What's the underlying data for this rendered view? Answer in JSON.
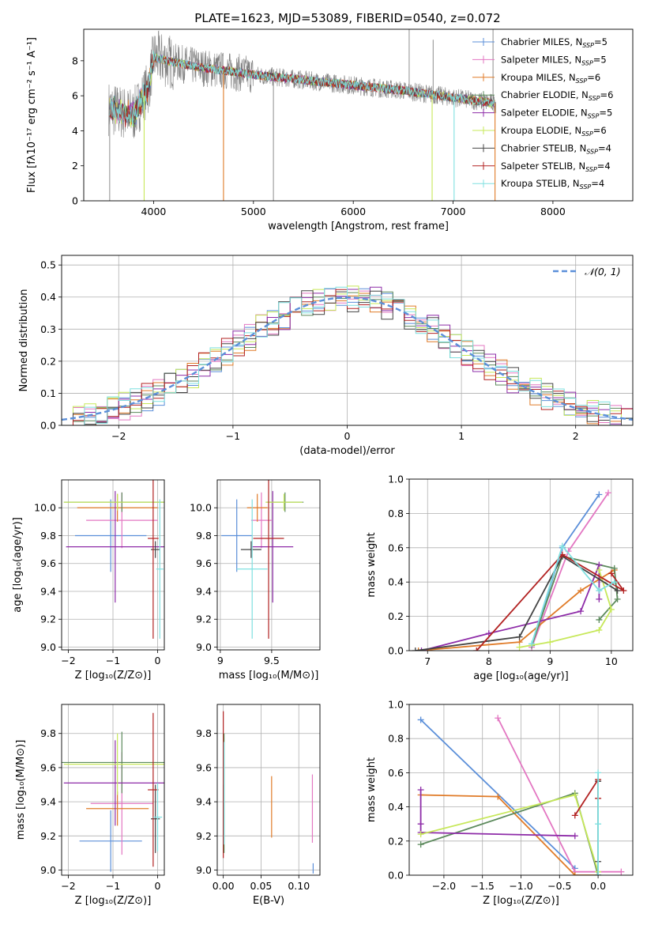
{
  "figure_title": "PLATE=1623, MJD=53089, FIBERID=0540, z=0.072",
  "colors": {
    "chabrier_miles": "#5b8fd9",
    "salpeter_miles": "#e377c2",
    "kroupa_miles": "#e07b28",
    "chabrier_elodie": "#5c8a5c",
    "salpeter_elodie": "#8e2ca8",
    "kroupa_elodie": "#c7e85a",
    "chabrier_stelib": "#444444",
    "salpeter_stelib": "#b22222",
    "kroupa_stelib": "#7fe0e0",
    "data": "#808080",
    "normal": "#5b8fd9"
  },
  "chart_data": [
    {
      "id": "spectrum",
      "type": "line",
      "title": "PLATE=1623, MJD=53089, FIBERID=0540, z=0.072",
      "xlabel": "wavelength [Angstrom, rest frame]",
      "ylabel": "Flux [fλ10⁻¹⁷ erg cm⁻² s⁻¹ A⁻¹]",
      "xlim": [
        3300,
        8800
      ],
      "ylim": [
        0,
        9.8
      ],
      "xticks": [
        4000,
        5000,
        6000,
        7000,
        8000
      ],
      "yticks": [
        0,
        2,
        4,
        6,
        8
      ],
      "legend_position": "top-right",
      "legend": [
        {
          "key": "chabrier_miles",
          "label": "Chabrier MILES, N",
          "sub": "SSP",
          "suffix": "=5"
        },
        {
          "key": "salpeter_miles",
          "label": "Salpeter MILES, N",
          "sub": "SSP",
          "suffix": "=5"
        },
        {
          "key": "kroupa_miles",
          "label": "Kroupa MILES, N",
          "sub": "SSP",
          "suffix": "=6"
        },
        {
          "key": "chabrier_elodie",
          "label": "Chabrier ELODIE, N",
          "sub": "SSP",
          "suffix": "=6"
        },
        {
          "key": "salpeter_elodie",
          "label": "Salpeter ELODIE, N",
          "sub": "SSP",
          "suffix": "=5"
        },
        {
          "key": "kroupa_elodie",
          "label": "Kroupa ELODIE, N",
          "sub": "SSP",
          "suffix": "=6"
        },
        {
          "key": "chabrier_stelib",
          "label": "Chabrier STELIB, N",
          "sub": "SSP",
          "suffix": "=4"
        },
        {
          "key": "salpeter_stelib",
          "label": "Salpeter STELIB, N",
          "sub": "SSP",
          "suffix": "=4"
        },
        {
          "key": "kroupa_stelib",
          "label": "Kroupa STELIB, N",
          "sub": "SSP",
          "suffix": "=4"
        }
      ],
      "continuum": {
        "x": [
          3550,
          3650,
          3800,
          3950,
          4000,
          4200,
          4500,
          5000,
          5500,
          6000,
          6500,
          7000,
          7500,
          8000,
          8500,
          8800
        ],
        "y": [
          5.3,
          5.1,
          4.9,
          6.5,
          8.2,
          7.9,
          7.6,
          7.2,
          6.9,
          6.6,
          6.3,
          5.9,
          5.5,
          5.1,
          4.7,
          4.5
        ]
      },
      "data_spikes": [
        {
          "x": 3560,
          "y": 0.0
        },
        {
          "x": 5200,
          "y": 0.0
        },
        {
          "x": 6560,
          "y": 9.8
        },
        {
          "x": 6800,
          "y": 9.2
        },
        {
          "x": 7400,
          "y": 9.8
        }
      ],
      "model_dips": [
        {
          "x": 3905,
          "y": 0.0,
          "key": "kroupa_elodie"
        },
        {
          "x": 4700,
          "y": 0.0,
          "key": "kroupa_miles"
        },
        {
          "x": 6790,
          "y": 0.0,
          "key": "kroupa_elodie"
        },
        {
          "x": 7010,
          "y": 0.0,
          "key": "kroupa_stelib"
        },
        {
          "x": 7420,
          "y": 0.0,
          "key": "kroupa_miles"
        }
      ]
    },
    {
      "id": "residuals",
      "type": "histogram",
      "xlabel": "(data-model)/error",
      "ylabel": "Normed distribution",
      "xlim": [
        -2.5,
        2.5
      ],
      "ylim": [
        0,
        0.53
      ],
      "xticks": [
        -2,
        -1,
        0,
        1,
        2
      ],
      "yticks": [
        0.0,
        0.1,
        0.2,
        0.3,
        0.4,
        0.5
      ],
      "legend_position": "top-right",
      "legend": [
        {
          "key": "normal",
          "label": "𝒩(0, 1)"
        }
      ],
      "bin_width": 0.1,
      "normal_pdf": {
        "mean": 0,
        "sigma": 1
      }
    },
    {
      "id": "age_vs_Z",
      "type": "errorbar",
      "xlabel": "Z [log₁₀(Z/Z⊙)]",
      "ylabel": "age  [log₁₀(age/yr)]",
      "xlim": [
        -2.15,
        0.15
      ],
      "ylim": [
        8.98,
        10.2
      ],
      "xticks": [
        -2,
        -1,
        0
      ],
      "yticks": [
        9.0,
        9.2,
        9.4,
        9.6,
        9.8,
        10.0
      ],
      "points": [
        {
          "key": "chabrier_miles",
          "x": -1.05,
          "xerr": 0.8,
          "y": 9.8,
          "yerr": 0.26
        },
        {
          "key": "salpeter_miles",
          "x": -0.8,
          "xerr": 0.8,
          "y": 9.91,
          "yerr": 0.2
        },
        {
          "key": "kroupa_miles",
          "x": -0.9,
          "xerr": 0.9,
          "y": 10.0,
          "yerr": 0.1
        },
        {
          "key": "chabrier_elodie",
          "x": -0.8,
          "xerr": 1.3,
          "y": 10.04,
          "yerr": 0.07
        },
        {
          "key": "salpeter_elodie",
          "x": -0.95,
          "xerr": 1.1,
          "y": 9.72,
          "yerr": 0.4
        },
        {
          "key": "kroupa_elodie",
          "x": -0.9,
          "xerr": 1.2,
          "y": 10.04,
          "yerr": 0.06
        },
        {
          "key": "chabrier_stelib",
          "x": -0.05,
          "xerr": 0.1,
          "y": 9.7,
          "yerr": 0.06
        },
        {
          "key": "salpeter_stelib",
          "x": -0.1,
          "xerr": 0.12,
          "y": 9.78,
          "yerr": 0.72
        },
        {
          "key": "kroupa_stelib",
          "x": 0.05,
          "xerr": 0.08,
          "y": 9.56,
          "yerr": 0.5
        }
      ]
    },
    {
      "id": "age_vs_mass",
      "type": "errorbar",
      "xlabel": "mass [log₁₀(M/M⊙)]",
      "ylabel": "",
      "xlim": [
        8.97,
        9.97
      ],
      "ylim": [
        8.98,
        10.2
      ],
      "xticks": [
        9.0,
        9.5
      ],
      "yticks": [
        9.0,
        9.2,
        9.4,
        9.6,
        9.8,
        10.0
      ],
      "points": [
        {
          "key": "chabrier_miles",
          "x": 9.16,
          "xerr": 0.15,
          "y": 9.8,
          "yerr": 0.26
        },
        {
          "key": "salpeter_miles",
          "x": 9.4,
          "xerr": 0.1,
          "y": 9.91,
          "yerr": 0.2
        },
        {
          "key": "kroupa_miles",
          "x": 9.36,
          "xerr": 0.1,
          "y": 10.0,
          "yerr": 0.1
        },
        {
          "key": "chabrier_elodie",
          "x": 9.63,
          "xerr": 0.18,
          "y": 10.04,
          "yerr": 0.07
        },
        {
          "key": "salpeter_elodie",
          "x": 9.51,
          "xerr": 0.2,
          "y": 9.72,
          "yerr": 0.4
        },
        {
          "key": "kroupa_elodie",
          "x": 9.62,
          "xerr": 0.18,
          "y": 10.04,
          "yerr": 0.06
        },
        {
          "key": "chabrier_stelib",
          "x": 9.3,
          "xerr": 0.1,
          "y": 9.7,
          "yerr": 0.06
        },
        {
          "key": "salpeter_stelib",
          "x": 9.47,
          "xerr": 0.15,
          "y": 9.78,
          "yerr": 0.72
        },
        {
          "key": "kroupa_stelib",
          "x": 9.31,
          "xerr": 0.15,
          "y": 9.56,
          "yerr": 0.5
        }
      ]
    },
    {
      "id": "weight_vs_age",
      "type": "line",
      "xlabel": "age  [log₁₀(age/yr)]",
      "ylabel": "mass weight",
      "xlim": [
        6.7,
        10.35
      ],
      "ylim": [
        0,
        1.0
      ],
      "xticks": [
        7,
        8,
        9,
        10
      ],
      "yticks": [
        0.0,
        0.2,
        0.4,
        0.6,
        0.8,
        1.0
      ],
      "series": [
        {
          "key": "chabrier_miles",
          "x": [
            8.7,
            9.2,
            9.8
          ],
          "y": [
            0.03,
            0.6,
            0.91
          ]
        },
        {
          "key": "salpeter_miles",
          "x": [
            8.7,
            9.3,
            9.95
          ],
          "y": [
            0.02,
            0.58,
            0.92
          ]
        },
        {
          "key": "kroupa_miles",
          "x": [
            6.85,
            8.5,
            9.5,
            10.05
          ],
          "y": [
            0.0,
            0.05,
            0.35,
            0.47
          ]
        },
        {
          "key": "chabrier_elodie",
          "x": [
            8.7,
            9.2,
            10.05,
            10.1,
            9.8
          ],
          "y": [
            0.03,
            0.55,
            0.48,
            0.3,
            0.18
          ]
        },
        {
          "key": "salpeter_elodie",
          "x": [
            6.9,
            8.0,
            9.5,
            9.8,
            9.8
          ],
          "y": [
            0.0,
            0.1,
            0.23,
            0.5,
            0.3
          ]
        },
        {
          "key": "kroupa_elodie",
          "x": [
            8.5,
            9.0,
            9.8,
            10.0,
            9.8
          ],
          "y": [
            0.02,
            0.05,
            0.12,
            0.24,
            0.47
          ]
        },
        {
          "key": "chabrier_stelib",
          "x": [
            6.8,
            8.5,
            9.2,
            10.1
          ],
          "y": [
            0.0,
            0.08,
            0.55,
            0.35
          ]
        },
        {
          "key": "salpeter_stelib",
          "x": [
            7.8,
            9.2,
            10.2,
            10.0
          ],
          "y": [
            0.0,
            0.56,
            0.35,
            0.45
          ]
        },
        {
          "key": "kroupa_stelib",
          "x": [
            8.7,
            9.2,
            9.8,
            10.05
          ],
          "y": [
            0.04,
            0.61,
            0.35,
            0.4
          ]
        }
      ]
    },
    {
      "id": "mass_vs_Z",
      "type": "errorbar",
      "xlabel": "Z [log₁₀(Z/Z⊙)]",
      "ylabel": "mass [log₁₀(M/M⊙)]",
      "xlim": [
        -2.15,
        0.15
      ],
      "ylim": [
        8.97,
        9.97
      ],
      "xticks": [
        -2,
        -1,
        0
      ],
      "yticks": [
        9.0,
        9.2,
        9.4,
        9.6,
        9.8
      ],
      "points": [
        {
          "key": "chabrier_miles",
          "x": -1.05,
          "xerr": 0.7,
          "y": 9.17,
          "yerr": 0.18
        },
        {
          "key": "salpeter_miles",
          "x": -0.8,
          "xerr": 0.7,
          "y": 9.39,
          "yerr": 0.3
        },
        {
          "key": "kroupa_miles",
          "x": -0.9,
          "xerr": 0.7,
          "y": 9.36,
          "yerr": 0.1
        },
        {
          "key": "chabrier_elodie",
          "x": -0.8,
          "xerr": 1.35,
          "y": 9.63,
          "yerr": 0.18
        },
        {
          "key": "salpeter_elodie",
          "x": -0.95,
          "xerr": 1.15,
          "y": 9.51,
          "yerr": 0.25
        },
        {
          "key": "kroupa_elodie",
          "x": -0.9,
          "xerr": 1.2,
          "y": 9.62,
          "yerr": 0.18
        },
        {
          "key": "chabrier_stelib",
          "x": -0.05,
          "xerr": 0.1,
          "y": 9.3,
          "yerr": 0.2
        },
        {
          "key": "salpeter_stelib",
          "x": -0.1,
          "xerr": 0.12,
          "y": 9.47,
          "yerr": 0.45
        },
        {
          "key": "kroupa_stelib",
          "x": 0.0,
          "xerr": 0.1,
          "y": 9.31,
          "yerr": 0.2
        }
      ]
    },
    {
      "id": "mass_vs_ebv",
      "type": "errorbar",
      "xlabel": "E(B-V)",
      "ylabel": "",
      "xlim": [
        -0.008,
        0.128
      ],
      "ylim": [
        8.97,
        9.97
      ],
      "xticks": [
        0.0,
        0.05,
        0.1
      ],
      "xtick_labels": [
        "0.00",
        "0.05",
        "0.10"
      ],
      "yticks": [
        9.0,
        9.2,
        9.4,
        9.6,
        9.8
      ],
      "points": [
        {
          "key": "chabrier_stelib",
          "x": 0.0,
          "xerr": 0,
          "y": 9.3,
          "yerr": 0.2
        },
        {
          "key": "salpeter_stelib",
          "x": 0.0,
          "xerr": 0,
          "y": 9.5,
          "yerr": 0.43
        },
        {
          "key": "chabrier_elodie",
          "x": 0.001,
          "xerr": 0,
          "y": 9.45,
          "yerr": 0.35
        },
        {
          "key": "kroupa_stelib",
          "x": 0.001,
          "xerr": 0,
          "y": 9.45,
          "yerr": 0.3
        },
        {
          "key": "kroupa_miles",
          "x": 0.064,
          "xerr": 0,
          "y": 9.37,
          "yerr": 0.18
        },
        {
          "key": "salpeter_miles",
          "x": 0.118,
          "xerr": 0,
          "y": 9.36,
          "yerr": 0.2
        },
        {
          "key": "chabrier_miles",
          "x": 0.119,
          "xerr": 0,
          "y": 9.01,
          "yerr": 0.03
        }
      ]
    },
    {
      "id": "weight_vs_Z",
      "type": "line",
      "xlabel": "Z [log₁₀(Z/Z⊙)]",
      "ylabel": "mass weight",
      "xlim": [
        -2.45,
        0.45
      ],
      "ylim": [
        0,
        1.0
      ],
      "xticks": [
        -2.0,
        -1.5,
        -1.0,
        -0.5,
        0.0
      ],
      "xtick_labels": [
        "−2.0",
        "−1.5",
        "−1.0",
        "−0.5",
        "0.0"
      ],
      "yticks": [
        0.0,
        0.2,
        0.4,
        0.6,
        0.8,
        1.0
      ],
      "series": [
        {
          "key": "chabrier_miles",
          "x": [
            -2.3,
            -0.3
          ],
          "y": [
            0.91,
            0.04
          ]
        },
        {
          "key": "salpeter_miles",
          "x": [
            -1.3,
            -0.3,
            0.3
          ],
          "y": [
            0.92,
            0.02,
            0.02
          ]
        },
        {
          "key": "kroupa_miles",
          "x": [
            -2.3,
            -1.3,
            -0.3,
            0.0
          ],
          "y": [
            0.47,
            0.46,
            0.0,
            0.0
          ]
        },
        {
          "key": "chabrier_elodie",
          "x": [
            -2.3,
            -0.3,
            0.0
          ],
          "y": [
            0.18,
            0.48,
            0.0
          ]
        },
        {
          "key": "salpeter_elodie",
          "x": [
            -2.3,
            -2.3,
            -2.3,
            -0.3
          ],
          "y": [
            0.5,
            0.3,
            0.25,
            0.23
          ]
        },
        {
          "key": "kroupa_elodie",
          "x": [
            -2.3,
            -0.3,
            0.0
          ],
          "y": [
            0.24,
            0.47,
            0.02
          ]
        },
        {
          "key": "chabrier_stelib",
          "x": [
            0.0,
            0.0,
            0.0
          ],
          "y": [
            0.55,
            0.08,
            0.0
          ]
        },
        {
          "key": "salpeter_stelib",
          "x": [
            -0.3,
            0.0,
            0.0
          ],
          "y": [
            0.35,
            0.56,
            0.45
          ]
        },
        {
          "key": "kroupa_stelib",
          "x": [
            0.0,
            0.0,
            0.0
          ],
          "y": [
            0.6,
            0.3,
            0.0
          ]
        }
      ]
    }
  ]
}
